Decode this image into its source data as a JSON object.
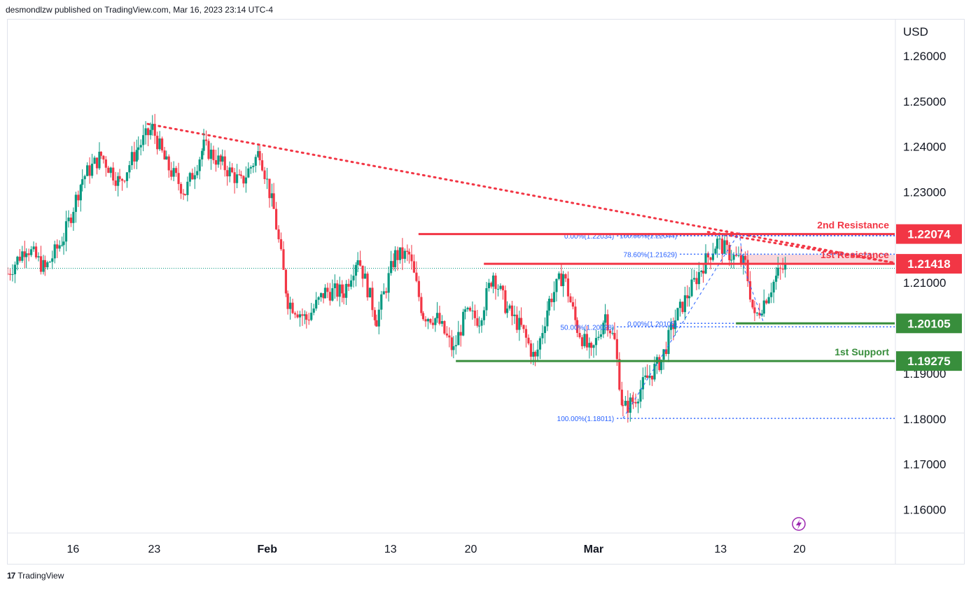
{
  "header": {
    "publisher_text": "desmondlzw published on TradingView.com, Mar 16, 2023 23:14 UTC-4"
  },
  "footer": {
    "logo_glyph": "17",
    "brand": "TradingView"
  },
  "colors": {
    "up": "#089981",
    "down": "#f23645",
    "resistance": "#f23645",
    "support": "#388e3c",
    "fib": "#2962ff",
    "trend": "#f23645",
    "zone": "#f8cdd2"
  },
  "chart_data": {
    "type": "candlestick",
    "y_axis": {
      "currency_label": "USD",
      "ylim": [
        1.155,
        1.268
      ],
      "ticks": [
        1.26,
        1.25,
        1.24,
        1.23,
        1.21,
        1.19,
        1.18,
        1.17,
        1.16
      ],
      "tick_labels": [
        "1.26000",
        "1.25000",
        "1.24000",
        "1.23000",
        "1.21000",
        "1.19000",
        "1.18000",
        "1.17000",
        "1.16000"
      ]
    },
    "x_axis": {
      "ticks": [
        {
          "label": "16",
          "x": 0.14
        },
        {
          "label": "23",
          "x": 0.314
        },
        {
          "label": "Feb",
          "x": 0.556
        },
        {
          "label": "13",
          "x": 0.82
        },
        {
          "label": "20",
          "x": 0.992
        },
        {
          "label": "Mar",
          "x": 1.255
        },
        {
          "label": "13",
          "x": 1.527
        },
        {
          "label": "20",
          "x": 1.696
        }
      ],
      "xlim": [
        0.0,
        1.9
      ],
      "note": "x positions in chart time units (1.0 ≈ one week)"
    },
    "current_price_line": 1.2132,
    "levels": [
      {
        "name": "2nd Resistance",
        "value": 1.22074,
        "tag": "1.22074",
        "color": "resistance",
        "x_start": 0.88
      },
      {
        "name": "1st Resistance",
        "value": 1.21418,
        "tag": "1.21418",
        "color": "resistance",
        "x_start": 1.02
      },
      {
        "name": "",
        "value": 1.20105,
        "tag": "1.20105",
        "color": "support",
        "x_start": 1.56
      },
      {
        "name": "1st Support",
        "value": 1.19275,
        "tag": "1.19275",
        "color": "support",
        "x_start": 0.96
      }
    ],
    "resistance_zone": {
      "from": 1.2142,
      "to": 1.2162,
      "x_start": 1.57
    },
    "trendlines": [
      {
        "x1": 0.3,
        "y1": 1.245,
        "x2": 1.905,
        "y2": 1.2143
      },
      {
        "x1": 1.5,
        "y1": 1.2212,
        "x2": 1.905,
        "y2": 1.2143
      }
    ],
    "fib_sets": [
      {
        "x_start": 1.305,
        "levels": [
          {
            "label": "100.00%(1.18011)",
            "value": 1.18011
          },
          {
            "label": "50.00%(1.20028)",
            "value": 1.20028
          },
          {
            "label": "0.00%(1.22034)",
            "value": 1.22034
          }
        ]
      },
      {
        "x_start": 1.44,
        "levels": [
          {
            "label": "0.00%(1.20105)",
            "value": 1.20105
          },
          {
            "label": "78.60%(1.21629)",
            "value": 1.21629
          },
          {
            "label": "100.00%(1.22044)",
            "value": 1.22044
          }
        ]
      }
    ],
    "projection_points": [
      [
        1.318,
        1.1801
      ],
      [
        1.535,
        1.216
      ],
      [
        1.567,
        1.221
      ],
      [
        1.578,
        1.213
      ],
      [
        1.62,
        1.201
      ]
    ],
    "candle_anchors": [
      [
        0.0,
        1.212
      ],
      [
        0.04,
        1.218
      ],
      [
        0.08,
        1.213
      ],
      [
        0.12,
        1.22
      ],
      [
        0.16,
        1.233
      ],
      [
        0.2,
        1.238
      ],
      [
        0.24,
        1.232
      ],
      [
        0.28,
        1.24
      ],
      [
        0.31,
        1.244
      ],
      [
        0.34,
        1.236
      ],
      [
        0.38,
        1.23
      ],
      [
        0.42,
        1.24
      ],
      [
        0.46,
        1.236
      ],
      [
        0.5,
        1.232
      ],
      [
        0.54,
        1.239
      ],
      [
        0.57,
        1.226
      ],
      [
        0.6,
        1.206
      ],
      [
        0.64,
        1.202
      ],
      [
        0.68,
        1.208
      ],
      [
        0.72,
        1.208
      ],
      [
        0.75,
        1.216
      ],
      [
        0.79,
        1.202
      ],
      [
        0.83,
        1.216
      ],
      [
        0.86,
        1.216
      ],
      [
        0.89,
        1.203
      ],
      [
        0.92,
        1.202
      ],
      [
        0.955,
        1.195
      ],
      [
        0.98,
        1.203
      ],
      [
        1.01,
        1.202
      ],
      [
        1.04,
        1.212
      ],
      [
        1.07,
        1.204
      ],
      [
        1.1,
        1.2
      ],
      [
        1.13,
        1.193
      ],
      [
        1.16,
        1.206
      ],
      [
        1.19,
        1.212
      ],
      [
        1.22,
        1.2
      ],
      [
        1.25,
        1.194
      ],
      [
        1.28,
        1.203
      ],
      [
        1.3,
        1.197
      ],
      [
        1.318,
        1.182
      ],
      [
        1.34,
        1.184
      ],
      [
        1.37,
        1.189
      ],
      [
        1.4,
        1.193
      ],
      [
        1.43,
        1.202
      ],
      [
        1.46,
        1.208
      ],
      [
        1.49,
        1.214
      ],
      [
        1.52,
        1.219
      ],
      [
        1.55,
        1.216
      ],
      [
        1.58,
        1.214
      ],
      [
        1.6,
        1.202
      ],
      [
        1.62,
        1.206
      ],
      [
        1.65,
        1.212
      ],
      [
        1.67,
        1.214
      ]
    ]
  },
  "lightning_icon": "lightning-bolt-icon"
}
